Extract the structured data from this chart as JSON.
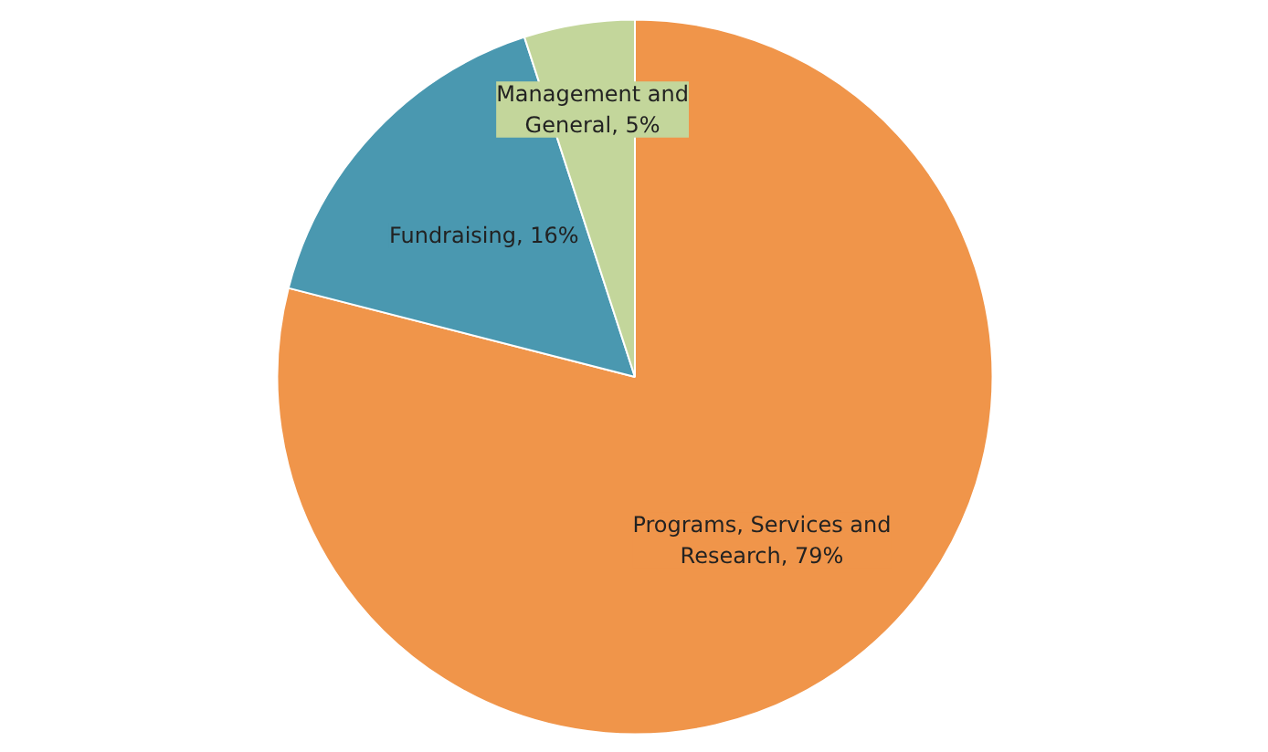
{
  "chart_data": {
    "type": "pie",
    "categories": [
      "Programs, Services and Research",
      "Fundraising",
      "Management and General"
    ],
    "values": [
      79,
      16,
      5
    ],
    "colors": [
      "#f0954a",
      "#4a98b0",
      "#c3d69b"
    ],
    "value_labels": [
      "79%",
      "16%",
      "5%"
    ]
  }
}
